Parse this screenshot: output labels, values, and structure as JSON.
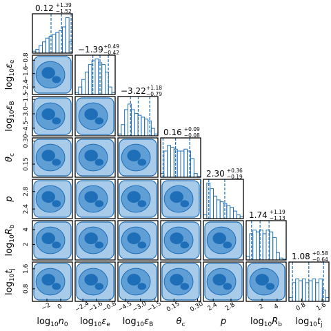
{
  "chart_data": {
    "type": "corner",
    "color": "#1f6fb8",
    "hist_ylim": [
      0,
      1.05
    ],
    "params": [
      {
        "label": [
          "log",
          "10",
          "n",
          "0"
        ],
        "xlim": [
          -4.1,
          1.7
        ],
        "xticks": [
          {
            "value": -2,
            "label": "−2"
          },
          0
        ],
        "median": 0.12,
        "plus": 1.39,
        "minus": 1.52,
        "value_labels": {
          "median": "0.12",
          "plus": "+1.39",
          "minus": "−1.52"
        },
        "hist": [
          0.05,
          0.1,
          0.2,
          0.3,
          0.4,
          0.45,
          0.5,
          0.55,
          0.6,
          0.7,
          0.95,
          0.3
        ]
      },
      {
        "label": [
          "log",
          "10",
          "ε",
          "e"
        ],
        "xlim": [
          -2.85,
          -0.5
        ],
        "xticks": [
          {
            "value": -2.4,
            "label": "−2.4"
          },
          {
            "value": -1.6,
            "label": "−1.6"
          },
          {
            "value": -0.8,
            "label": "−0.8"
          }
        ],
        "median": -1.39,
        "plus": 0.49,
        "minus": 0.42,
        "value_labels": {
          "median": "−1.39",
          "plus": "+0.49",
          "minus": "−0.42"
        },
        "hist": [
          0.05,
          0.2,
          0.4,
          0.6,
          0.8,
          0.9,
          0.95,
          0.85,
          0.8,
          0.6,
          0.2,
          0.05
        ]
      },
      {
        "label": [
          "log",
          "10",
          "ε",
          "B"
        ],
        "xlim": [
          -5.3,
          -1.2
        ],
        "xticks": [
          {
            "value": -4.5,
            "label": "−4.5"
          },
          {
            "value": -3.0,
            "label": "−3.0"
          },
          {
            "value": -1.5,
            "label": "−1.5"
          }
        ],
        "median": -3.22,
        "plus": 1.18,
        "minus": 0.79,
        "value_labels": {
          "median": "−3.22",
          "plus": "+1.18",
          "minus": "−0.79"
        },
        "hist": [
          0.05,
          0.3,
          0.7,
          0.85,
          0.7,
          0.6,
          0.55,
          0.5,
          0.45,
          0.4,
          0.2,
          0.05
        ]
      },
      {
        "label": [
          "θ",
          "c"
        ],
        "xlim": [
          0.065,
          0.32
        ],
        "xticks": [
          0.15,
          {
            "value": 0.3,
            "label": "0.30"
          }
        ],
        "median": 0.16,
        "plus": 0.09,
        "minus": 0.08,
        "value_labels": {
          "median": "0.16",
          "plus": "+0.09",
          "minus": "−0.08"
        },
        "hist": [
          0.1,
          0.7,
          0.85,
          0.8,
          0.75,
          0.7,
          0.7,
          0.75,
          0.7,
          0.5,
          0.1,
          0.02
        ]
      },
      {
        "label": [
          "p"
        ],
        "xlim": [
          2.18,
          3.08
        ],
        "xticks": [
          2.4,
          2.8
        ],
        "median": 2.3,
        "plus": 0.36,
        "minus": 0.19,
        "value_labels": {
          "median": "2.30",
          "plus": "+0.36",
          "minus": "−0.19"
        },
        "hist": [
          0.1,
          0.95,
          0.8,
          0.6,
          0.5,
          0.45,
          0.4,
          0.35,
          0.3,
          0.2,
          0.1,
          0.05
        ]
      },
      {
        "label": [
          "log",
          "10",
          "R",
          "b"
        ],
        "xlim": [
          -0.1,
          5.2
        ],
        "xticks": [
          2,
          4
        ],
        "median": 1.74,
        "plus": 1.19,
        "minus": 1.13,
        "value_labels": {
          "median": "1.74",
          "plus": "+1.19",
          "minus": "−1.13"
        },
        "hist": [
          0.1,
          0.7,
          0.8,
          0.75,
          0.8,
          0.7,
          0.8,
          0.75,
          0.6,
          0.2,
          0.05,
          0.02
        ]
      },
      {
        "label": [
          "log",
          "10",
          "t",
          "j"
        ],
        "xlim": [
          0.3,
          1.87
        ],
        "xticks": [
          0.8,
          1.6
        ],
        "median": 1.08,
        "plus": 0.58,
        "minus": 0.64,
        "value_labels": {
          "median": "1.08",
          "plus": "+0.58",
          "minus": "−0.64"
        },
        "hist": [
          0.1,
          0.5,
          0.6,
          0.55,
          0.6,
          0.5,
          0.55,
          0.6,
          0.5,
          0.6,
          0.3,
          0.1
        ]
      }
    ]
  }
}
